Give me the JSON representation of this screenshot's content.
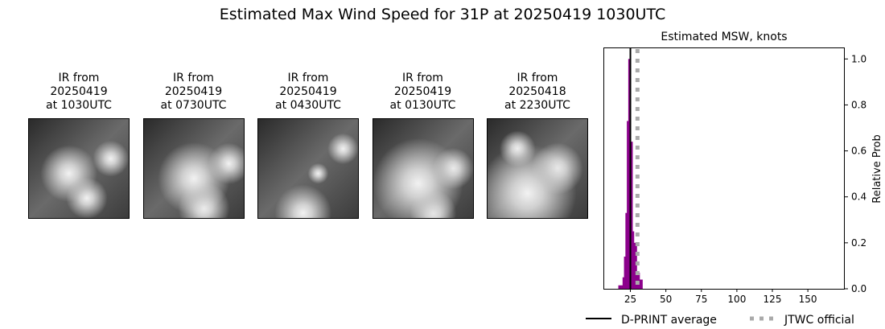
{
  "title": "Estimated Max Wind Speed for 31P at 20250419 1030UTC",
  "panels": [
    {
      "l1": "IR from",
      "l2": "20250419",
      "l3": "at 1030UTC"
    },
    {
      "l1": "IR from",
      "l2": "20250419",
      "l3": "at 0730UTC"
    },
    {
      "l1": "IR from",
      "l2": "20250419",
      "l3": "at 0430UTC"
    },
    {
      "l1": "IR from",
      "l2": "20250419",
      "l3": "at 0130UTC"
    },
    {
      "l1": "IR from",
      "l2": "20250418",
      "l3": "at 2230UTC"
    }
  ],
  "chart_data": {
    "type": "bar",
    "title": "Estimated MSW, knots",
    "ylabel": "Relative Prob",
    "xlim": [
      6,
      176
    ],
    "ylim": [
      0,
      1.05
    ],
    "xticks": [
      25,
      50,
      75,
      100,
      125,
      150
    ],
    "yticks": [
      "0.0",
      "0.2",
      "0.4",
      "0.6",
      "0.8",
      "1.0"
    ],
    "x": [
      17,
      18,
      19,
      20,
      21,
      22,
      23,
      24,
      25,
      26,
      27,
      28,
      29,
      30,
      31,
      32,
      33
    ],
    "values": [
      0.015,
      0.015,
      0.015,
      0.05,
      0.14,
      0.33,
      0.73,
      1.0,
      0.5,
      0.64,
      0.25,
      0.2,
      0.2,
      0.07,
      0.07,
      0.04,
      0.04
    ],
    "bar_color": "#8b008b",
    "dprint_average": 25,
    "jtwc_official": 30,
    "legend": [
      "D-PRINT average",
      "JTWC official"
    ],
    "legend_position": "bottom"
  }
}
